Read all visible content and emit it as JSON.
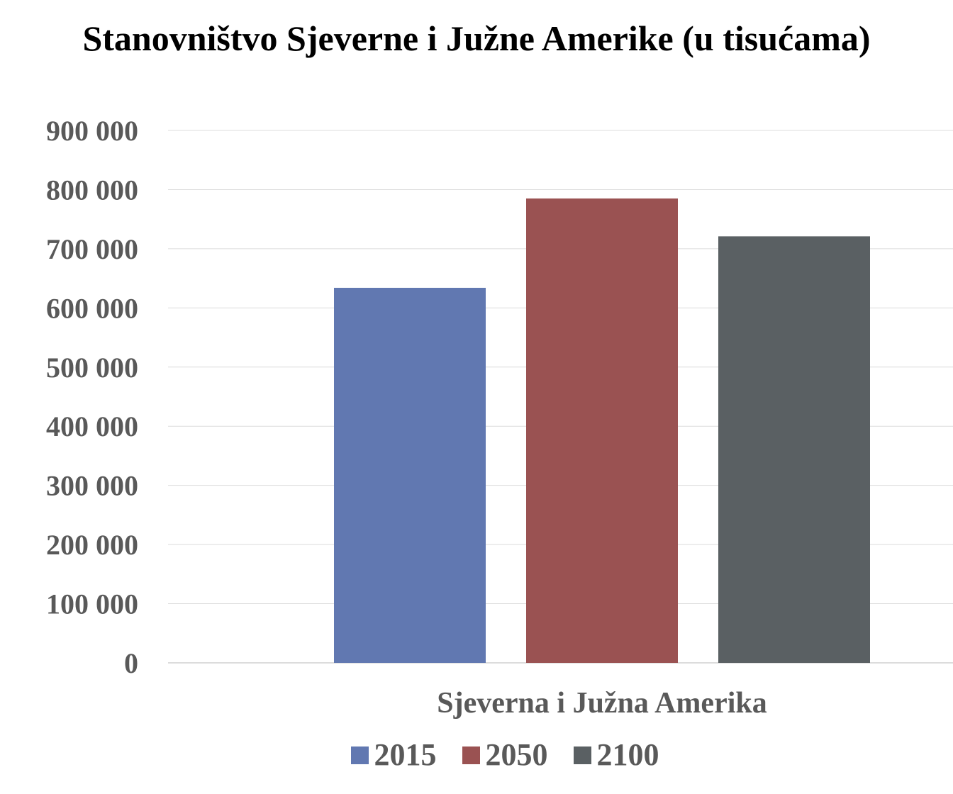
{
  "chart_data": {
    "type": "bar",
    "title": "Stanovništvo Sjeverne i Južne Amerike (u tisućama)",
    "categories": [
      "Sjeverna i Južna Amerika"
    ],
    "series": [
      {
        "name": "2015",
        "values": [
          634000
        ],
        "color": "#6178b1"
      },
      {
        "name": "2050",
        "values": [
          785000
        ],
        "color": "#9a5252"
      },
      {
        "name": "2100",
        "values": [
          721000
        ],
        "color": "#5a6063"
      }
    ],
    "yticks": [
      "0",
      "100 000",
      "200 000",
      "300 000",
      "400 000",
      "500 000",
      "600 000",
      "700 000",
      "800 000",
      "900 000"
    ],
    "ylim": [
      0,
      900000
    ],
    "grid": true,
    "legend_position": "bottom"
  }
}
